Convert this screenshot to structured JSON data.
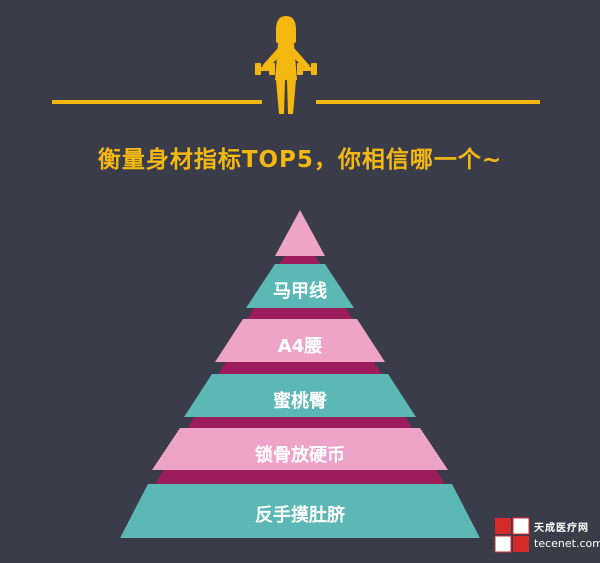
{
  "title": "衡量身材指标TOP5，你相信哪一个~",
  "pyramid": {
    "tiers": [
      {
        "label": "马甲线",
        "color": "#5bb8b5"
      },
      {
        "label": "A4腰",
        "color": "#eea3c8"
      },
      {
        "label": "蜜桃臀",
        "color": "#5bb8b5"
      },
      {
        "label": "锁骨放硬币",
        "color": "#eea3c8"
      },
      {
        "label": "反手摸肚脐",
        "color": "#5bb8b5"
      }
    ],
    "tip_color": "#eea3c8",
    "band_color": "#9c1c5c"
  },
  "colors": {
    "background": "#3a3d49",
    "accent": "#f5b811"
  },
  "watermark": {
    "site": "tecenet.com",
    "brand": "天成医疗网"
  }
}
